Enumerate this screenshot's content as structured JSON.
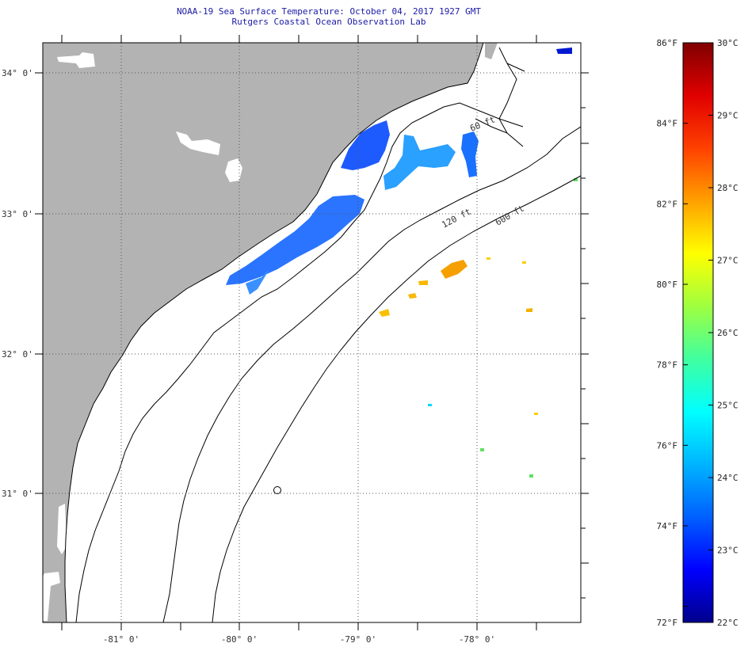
{
  "header": {
    "title": "NOAA-19 Sea Surface Temperature:  October 04, 2017 1927 GMT",
    "subtitle": "Rutgers Coastal Ocean Observation Lab"
  },
  "map": {
    "lon_labels": [
      "-81° 0'",
      "-80° 0'",
      "-79° 0'",
      "-78° 0'"
    ],
    "lat_labels": [
      "34° 0'",
      "33° 0'",
      "32° 0'",
      "31° 0'"
    ],
    "contour_labels": [
      "60 ft",
      "120 ft",
      "600 ft"
    ],
    "colors": {
      "land": "#b3b3b3",
      "ocean": "#ffffff",
      "cloud": "#ffffff"
    }
  },
  "colorbar": {
    "fahrenheit": [
      "86°F",
      "84°F",
      "82°F",
      "80°F",
      "78°F",
      "76°F",
      "74°F",
      "72°F"
    ],
    "celsius": [
      "30°C",
      "29°C",
      "28°C",
      "27°C",
      "26°C",
      "25°C",
      "24°C",
      "23°C",
      "22°C"
    ],
    "stops": [
      "#00008b",
      "#0000ff",
      "#0060ff",
      "#00b4ff",
      "#00ffff",
      "#40ff9f",
      "#9fff40",
      "#ffff00",
      "#ffa000",
      "#ff4000",
      "#e00000",
      "#7f0000"
    ]
  }
}
